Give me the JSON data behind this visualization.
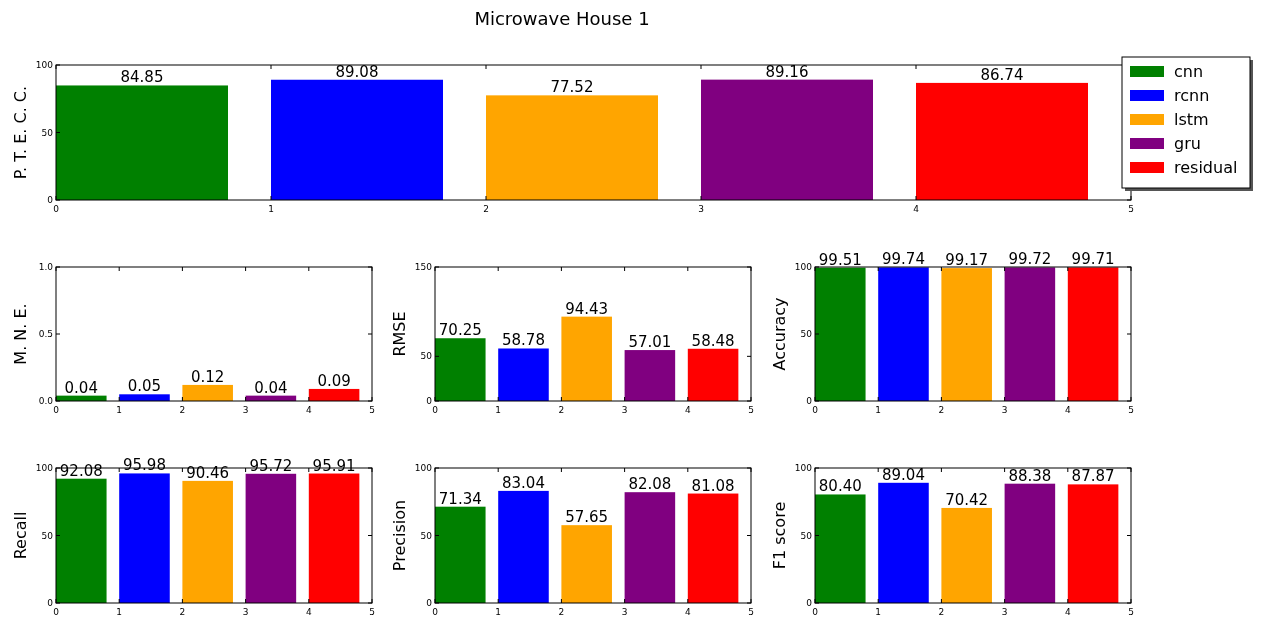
{
  "chart_data": [
    {
      "type": "bar",
      "title": "Microwave House 1",
      "ylabel": "P. T. E. C. C.",
      "xlim": [
        0,
        5
      ],
      "xticks": [
        0,
        1,
        2,
        3,
        4,
        5
      ],
      "ylim": [
        0,
        100
      ],
      "yticks": [
        0,
        50,
        100
      ],
      "legend": "top right",
      "grid": false,
      "series": [
        {
          "name": "cnn",
          "color": "#008000",
          "x": [
            0.4
          ],
          "values": [
            84.85
          ],
          "value_labels": [
            "84.85"
          ]
        },
        {
          "name": "rcnn",
          "color": "#0000ff",
          "x": [
            1.4
          ],
          "values": [
            89.08
          ],
          "value_labels": [
            "89.08"
          ]
        },
        {
          "name": "lstm",
          "color": "#ffa500",
          "x": [
            2.4
          ],
          "values": [
            77.52
          ],
          "value_labels": [
            "77.52"
          ]
        },
        {
          "name": "gru",
          "color": "#800080",
          "x": [
            3.4
          ],
          "values": [
            89.16
          ],
          "value_labels": [
            "89.16"
          ]
        },
        {
          "name": "residual",
          "color": "#ff0000",
          "x": [
            4.4
          ],
          "values": [
            86.74
          ],
          "value_labels": [
            "86.74"
          ]
        }
      ]
    },
    {
      "type": "bar",
      "ylabel": "M. N. E.",
      "x": [
        0.4,
        1.4,
        2.4,
        3.4,
        4.4
      ],
      "xlim": [
        0,
        5
      ],
      "xticks": [
        0,
        1,
        2,
        3,
        4,
        5
      ],
      "ylim": [
        0,
        1
      ],
      "yticks": [
        {
          "value": 0,
          "label": "0.0"
        },
        {
          "value": 0.5,
          "label": "0.5"
        },
        {
          "value": 1,
          "label": "1.0"
        }
      ],
      "values": [
        0.04,
        0.05,
        0.12,
        0.04,
        0.09
      ],
      "value_labels": [
        "0.04",
        "0.05",
        "0.12",
        "0.04",
        "0.09"
      ],
      "colors": [
        "#008000",
        "#0000ff",
        "#ffa500",
        "#800080",
        "#ff0000"
      ]
    },
    {
      "type": "bar",
      "ylabel": "RMSE",
      "x": [
        0.4,
        1.4,
        2.4,
        3.4,
        4.4
      ],
      "xlim": [
        0,
        5
      ],
      "xticks": [
        0,
        1,
        2,
        3,
        4,
        5
      ],
      "ylim": [
        0,
        150
      ],
      "yticks": [
        0,
        50,
        150
      ],
      "values": [
        70.25,
        58.78,
        94.43,
        57.01,
        58.48
      ],
      "value_labels": [
        "70.25",
        "58.78",
        "94.43",
        "57.01",
        "58.48"
      ],
      "colors": [
        "#008000",
        "#0000ff",
        "#ffa500",
        "#800080",
        "#ff0000"
      ]
    },
    {
      "type": "bar",
      "ylabel": "Accuracy",
      "x": [
        0.4,
        1.4,
        2.4,
        3.4,
        4.4
      ],
      "xlim": [
        0,
        5
      ],
      "xticks": [
        0,
        1,
        2,
        3,
        4,
        5
      ],
      "ylim": [
        0,
        100
      ],
      "yticks": [
        0,
        50,
        100
      ],
      "values": [
        99.51,
        99.74,
        99.17,
        99.72,
        99.71
      ],
      "value_labels": [
        "99.51",
        "99.74",
        "99.17",
        "99.72",
        "99.71"
      ],
      "colors": [
        "#008000",
        "#0000ff",
        "#ffa500",
        "#800080",
        "#ff0000"
      ]
    },
    {
      "type": "bar",
      "ylabel": "Recall",
      "x": [
        0.4,
        1.4,
        2.4,
        3.4,
        4.4
      ],
      "xlim": [
        0,
        5
      ],
      "xticks": [
        0,
        1,
        2,
        3,
        4,
        5
      ],
      "ylim": [
        0,
        100
      ],
      "yticks": [
        0,
        50,
        100
      ],
      "values": [
        92.08,
        95.98,
        90.46,
        95.72,
        95.91
      ],
      "value_labels": [
        "92.08",
        "95.98",
        "90.46",
        "95.72",
        "95.91"
      ],
      "colors": [
        "#008000",
        "#0000ff",
        "#ffa500",
        "#800080",
        "#ff0000"
      ]
    },
    {
      "type": "bar",
      "ylabel": "Precision",
      "x": [
        0.4,
        1.4,
        2.4,
        3.4,
        4.4
      ],
      "xlim": [
        0,
        5
      ],
      "xticks": [
        0,
        1,
        2,
        3,
        4,
        5
      ],
      "ylim": [
        0,
        100
      ],
      "yticks": [
        0,
        50,
        100
      ],
      "values": [
        71.34,
        83.04,
        57.65,
        82.08,
        81.08
      ],
      "value_labels": [
        "71.34",
        "83.04",
        "57.65",
        "82.08",
        "81.08"
      ],
      "colors": [
        "#008000",
        "#0000ff",
        "#ffa500",
        "#800080",
        "#ff0000"
      ]
    },
    {
      "type": "bar",
      "ylabel": "F1 score",
      "x": [
        0.4,
        1.4,
        2.4,
        3.4,
        4.4
      ],
      "xlim": [
        0,
        5
      ],
      "xticks": [
        0,
        1,
        2,
        3,
        4,
        5
      ],
      "ylim": [
        0,
        100
      ],
      "yticks": [
        0,
        50,
        100
      ],
      "values": [
        80.4,
        89.04,
        70.42,
        88.38,
        87.87
      ],
      "value_labels": [
        "80.40",
        "89.04",
        "70.42",
        "88.38",
        "87.87"
      ],
      "colors": [
        "#008000",
        "#0000ff",
        "#ffa500",
        "#800080",
        "#ff0000"
      ]
    }
  ]
}
